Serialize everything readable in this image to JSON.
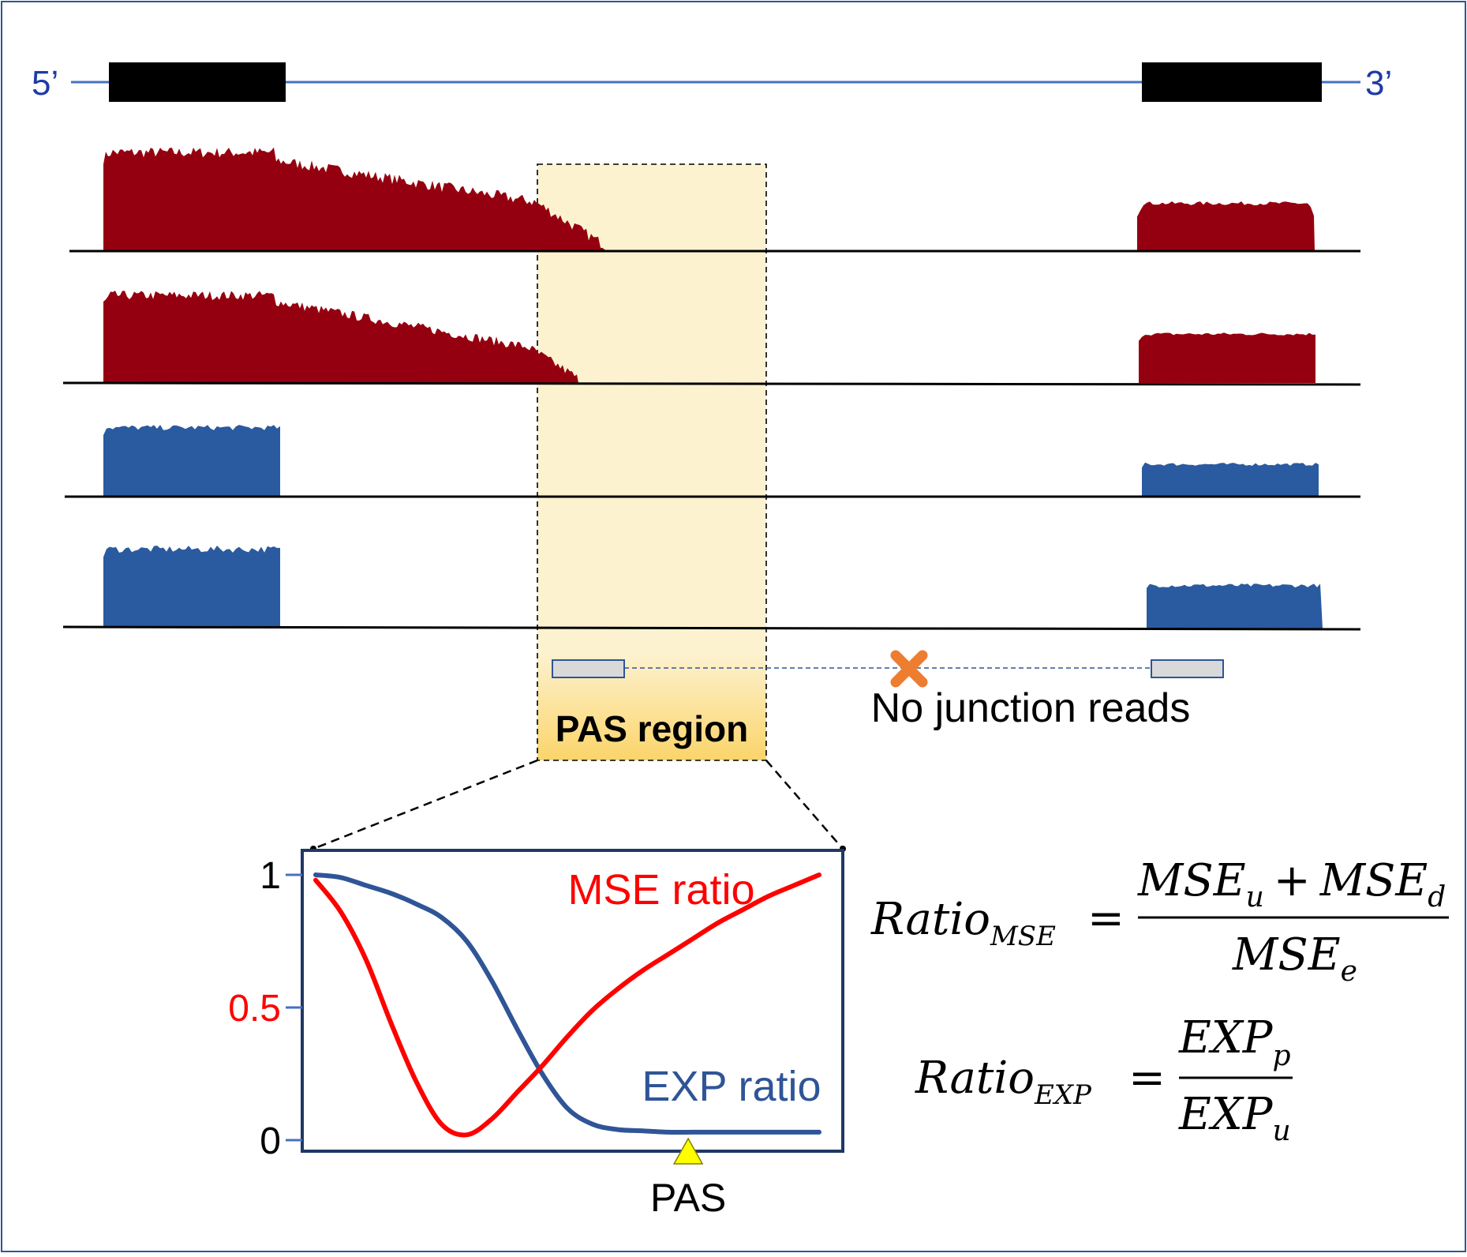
{
  "gene_model": {
    "five_prime_label": "5’",
    "three_prime_label": "3’"
  },
  "pas_region": {
    "label": "PAS region"
  },
  "junction": {
    "label": "No junction reads"
  },
  "chart_data": {
    "type": "line",
    "title": "",
    "xlabel": "",
    "ylabel": "",
    "ylim": [
      0,
      1
    ],
    "yticks": [
      {
        "value": 0,
        "label": "0"
      },
      {
        "value": 0.5,
        "label": "0.5"
      },
      {
        "value": 1,
        "label": "1"
      }
    ],
    "x": [
      0,
      0.05,
      0.1,
      0.15,
      0.2,
      0.25,
      0.3,
      0.35,
      0.4,
      0.45,
      0.5,
      0.55,
      0.6,
      0.65,
      0.7,
      0.75,
      0.8,
      0.85,
      0.9,
      0.95,
      1
    ],
    "series": [
      {
        "name": "MSE ratio",
        "color": "#ff0000",
        "values": [
          0.98,
          0.86,
          0.68,
          0.44,
          0.22,
          0.06,
          0.02,
          0.08,
          0.18,
          0.28,
          0.39,
          0.49,
          0.57,
          0.64,
          0.7,
          0.76,
          0.82,
          0.87,
          0.92,
          0.96,
          1.0
        ]
      },
      {
        "name": "EXP ratio",
        "color": "#2f5597",
        "values": [
          1.0,
          0.99,
          0.96,
          0.93,
          0.89,
          0.84,
          0.75,
          0.6,
          0.42,
          0.25,
          0.12,
          0.06,
          0.04,
          0.035,
          0.03,
          0.03,
          0.03,
          0.03,
          0.03,
          0.03,
          0.03
        ]
      }
    ],
    "annotations": [
      {
        "text": "PAS",
        "x": 0.74,
        "marker": "triangle",
        "color": "#ffff00"
      }
    ]
  },
  "equations": {
    "mse": {
      "lhs": "Ratio",
      "lhs_sub": "MSE",
      "eq": "=",
      "num1": "MSE",
      "num1_sub": "u",
      "plus": "+",
      "num2": "MSE",
      "num2_sub": "d",
      "den": "MSE",
      "den_sub": "e"
    },
    "exp": {
      "lhs": "Ratio",
      "lhs_sub": "EXP",
      "eq": "=",
      "num": "EXP",
      "num_sub": "p",
      "den": "EXP",
      "den_sub": "u"
    }
  },
  "colors": {
    "red_track": "#950010",
    "blue_track": "#2a5aa0",
    "gene_line": "#4472c4",
    "pas_fill": "#fdf2d0",
    "frame": "#1f3864"
  }
}
